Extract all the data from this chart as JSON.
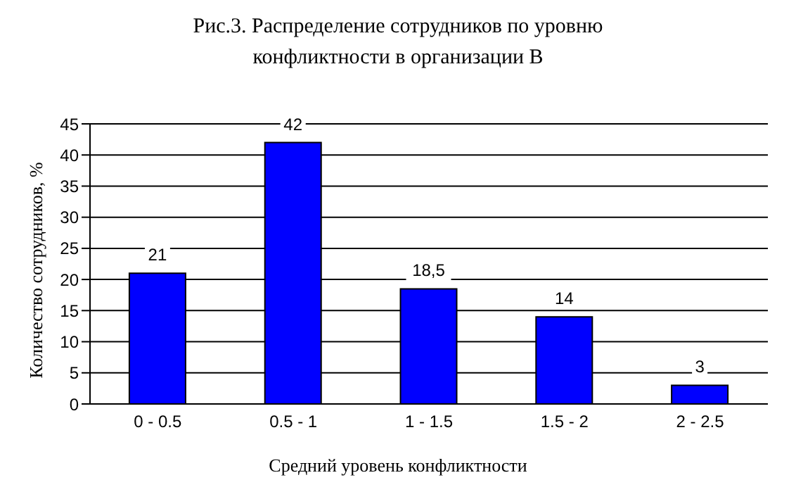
{
  "chart_data": {
    "type": "bar",
    "title": "Рис.3. Распределение сотрудников по уровню конфликтности в организации В",
    "xlabel": "Средний уровень конфликтности",
    "ylabel": "Количество сотрудников, %",
    "categories": [
      "0 - 0.5",
      "0.5 - 1",
      "1 - 1.5",
      "1.5 - 2",
      "2 - 2.5"
    ],
    "values": [
      21,
      42,
      18.5,
      14,
      3
    ],
    "value_labels": [
      "21",
      "42",
      "18,5",
      "14",
      "3"
    ],
    "color": "#0000ff",
    "ylim": [
      0,
      45
    ],
    "yticks": [
      0,
      5,
      10,
      15,
      20,
      25,
      30,
      35,
      40,
      45
    ],
    "grid": "y"
  }
}
